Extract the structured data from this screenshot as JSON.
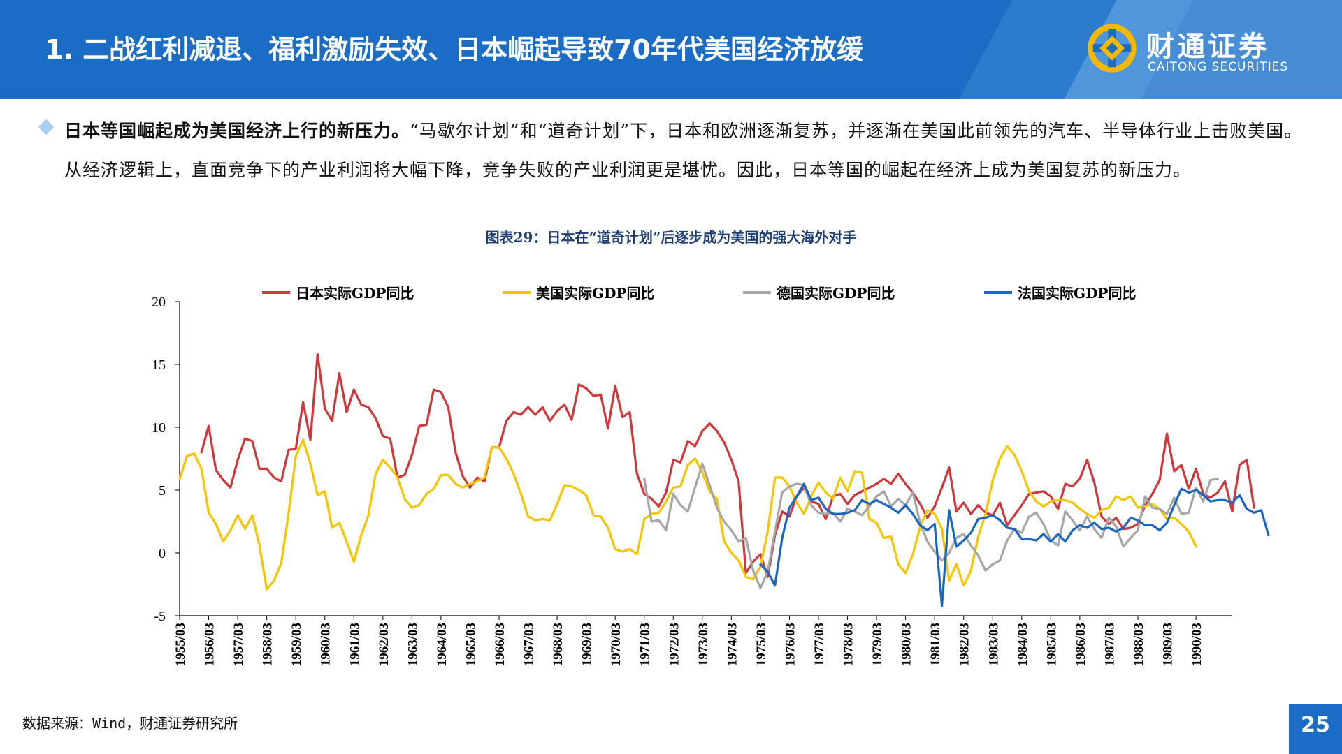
{
  "header": {
    "title": "1. 二战红利减退、福利激励失效、日本崛起导致70年代美国经济放缓",
    "logo_cn": "财通证券",
    "logo_en": "CAITONG SECURITIES",
    "logo_icon": "caitong-logo-icon",
    "color": "#1a6cc4"
  },
  "bullet": {
    "bold": "日本等国崛起成为美国经济上行的新压力。",
    "text": "“马歇尔计划”和“道奇计划”下，日本和欧洲逐渐复苏，并逐渐在美国此前领先的汽车、半导体行业上击败美国。从经济逻辑上，直面竞争下的产业利润将大幅下降，竞争失败的产业利润更是堪忧。因此，日本等国的崛起在经济上成为美国复苏的新压力。"
  },
  "chart_title": "图表29：日本在“道奇计划”后逐步成为美国的强大海外对手",
  "source": "数据来源：Wind，财通证券研究所",
  "page_number": "25",
  "chart_data": {
    "type": "line",
    "ylim": [
      -5,
      20
    ],
    "yticks": [
      20,
      15,
      10,
      5,
      0,
      -5
    ],
    "ytick_labels": [
      "20",
      "15",
      "10",
      "5",
      "0",
      "-5"
    ],
    "xlim": [
      1955.0,
      1991.25
    ],
    "xticks": [
      "1955/03",
      "1956/03",
      "1957/03",
      "1958/03",
      "1959/03",
      "1960/03",
      "1961/03",
      "1962/03",
      "1963/03",
      "1964/03",
      "1965/03",
      "1966/03",
      "1967/03",
      "1968/03",
      "1969/03",
      "1970/03",
      "1971/03",
      "1972/03",
      "1973/03",
      "1974/03",
      "1975/03",
      "1976/03",
      "1977/03",
      "1978/03",
      "1979/03",
      "1980/03",
      "1981/03",
      "1982/03",
      "1983/03",
      "1984/03",
      "1985/03",
      "1986/03",
      "1987/03",
      "1988/03",
      "1989/03",
      "1990/03"
    ],
    "legend_position": "top",
    "grid": false,
    "series": [
      {
        "name": "日本实际GDP同比",
        "color": "#d0373b",
        "start": 1955.75,
        "values": [
          8,
          10.1,
          6.6,
          5.8,
          5.2,
          7.4,
          9.1,
          8.9,
          6.7,
          6.7,
          6,
          5.7,
          8.2,
          8.3,
          12,
          9,
          15.8,
          11.5,
          10.5,
          14.3,
          11.2,
          13,
          11.8,
          11.6,
          10.7,
          9.3,
          9.1,
          6,
          6.2,
          7.8,
          10.1,
          10.2,
          13,
          12.8,
          11.6,
          8,
          6.1,
          5.2,
          6,
          5.7,
          8.4,
          8.4,
          10.5,
          11.2,
          11,
          11.6,
          11,
          11.6,
          10.5,
          11.3,
          11.8,
          10.6,
          13.4,
          13.1,
          12.5,
          12.6,
          9.9,
          13.3,
          10.8,
          11.2,
          6.3,
          4.7,
          4.3,
          3.7,
          4.8,
          7.4,
          7.2,
          8.9,
          8.5,
          9.7,
          10.3,
          9.7,
          8.8,
          7.4,
          5.7,
          -1.6,
          -0.7,
          -0.1,
          -1.9,
          1.4,
          3.3,
          2.9,
          4.5,
          5.2,
          4.1,
          3.9,
          2.7,
          4.5,
          4.7,
          3.9,
          4.6,
          4.9,
          5.2,
          5.5,
          5.9,
          5.5,
          6.3,
          5.5,
          4.8,
          3.9,
          2.8,
          3.7,
          5.2,
          6.8,
          3.3,
          4,
          3.1,
          3.8,
          3.2,
          3,
          4,
          2.2,
          3,
          3.8,
          4.7,
          4.8,
          4.9,
          4.5,
          3.5,
          5.5,
          5.3,
          5.9,
          7.4,
          5.6,
          2.9,
          2.3,
          2.8,
          1.9,
          2,
          2.3,
          3.8,
          4.7,
          5.8,
          9.5,
          6.5,
          7,
          5.1,
          6.7,
          4.7,
          4.4,
          4.8,
          5.7,
          3.3,
          7,
          7.4,
          3.6
        ]
      },
      {
        "name": "美国实际GDP同比",
        "color": "#f5c500",
        "start": 1955.0,
        "values": [
          5.9,
          7.7,
          7.9,
          6.7,
          3.2,
          2.3,
          0.9,
          1.8,
          3,
          1.9,
          3,
          0.6,
          -2.9,
          -2.2,
          -0.8,
          3.1,
          7.7,
          9,
          7.1,
          4.6,
          4.9,
          2,
          2.4,
          0.9,
          -0.7,
          1.4,
          3,
          6.3,
          7.4,
          6.8,
          6,
          4.3,
          3.6,
          3.8,
          4.7,
          5.1,
          6.2,
          6.2,
          5.5,
          5.2,
          5.5,
          5.7,
          6,
          8.4,
          8.4,
          7.5,
          6.3,
          4.7,
          2.9,
          2.6,
          2.7,
          2.6,
          3.9,
          5.4,
          5.3,
          5,
          4.6,
          3,
          2.9,
          2,
          0.3,
          0.1,
          0.3,
          -0.1,
          2.7,
          3.1,
          3.2,
          4.1,
          5.2,
          5.3,
          7,
          7.5,
          6.4,
          4.9,
          4.3,
          0.9,
          0,
          -0.6,
          -1.9,
          -2.1,
          -1.1,
          1.7,
          6,
          6,
          5.3,
          4,
          3.1,
          4.5,
          5.6,
          4.8,
          4.3,
          6,
          4.9,
          6.5,
          6.4,
          2.7,
          2.4,
          1.2,
          1.3,
          -0.9,
          -1.6,
          -0.1,
          2.1,
          3.4,
          3.1,
          1.9,
          -2.2,
          -0.9,
          -2.6,
          -1.4,
          1.3,
          3.1,
          5.8,
          7.5,
          8.5,
          7.8,
          6.5,
          4.9,
          4.1,
          3.7,
          4.1,
          4.2,
          4.2,
          4,
          3.5,
          3.1,
          2.8,
          3.4,
          3.6,
          4.5,
          4.2,
          4.5,
          3.6,
          3.7,
          3.9,
          3.5,
          2.7,
          2.8,
          2.3,
          1.7,
          0.5
        ]
      },
      {
        "name": "德国实际GDP同比",
        "color": "#a6a6a6",
        "start": 1971.0,
        "values": [
          5.9,
          2.5,
          2.6,
          1.8,
          4.7,
          3.8,
          3.3,
          5.2,
          7.1,
          5.4,
          3.6,
          2.5,
          1.8,
          0.9,
          1.2,
          -1.4,
          -2.8,
          -1.5,
          1.7,
          4.8,
          5.3,
          5.5,
          5.4,
          3.8,
          3.2,
          3.1,
          3.2,
          2.5,
          3.5,
          3.3,
          3,
          3.7,
          4.5,
          4.9,
          3.7,
          4.3,
          3.8,
          4.8,
          2.4,
          0.9,
          0.1,
          -0.6,
          0,
          1.2,
          1.5,
          0.6,
          -0.2,
          -1.4,
          -0.9,
          -0.6,
          1,
          1.9,
          1.6,
          2.9,
          3.2,
          2.3,
          1,
          0.6,
          3.3,
          2.6,
          1.8,
          2.9,
          1.9,
          1.2,
          2.8,
          2.1,
          0.5,
          1.2,
          1.8,
          4.5,
          3.6,
          3.5,
          3.1,
          4.4,
          3.1,
          3.2,
          5.2,
          4.1,
          5.8,
          5.9
        ]
      },
      {
        "name": "法国实际GDP同比",
        "color": "#1a66c0",
        "start": 1975.0,
        "values": [
          -0.9,
          -1.5,
          -2.6,
          1.2,
          3.6,
          4.5,
          5.5,
          4.2,
          4.4,
          3.5,
          3.1,
          3.1,
          3.2,
          3.4,
          4.2,
          3.9,
          4.2,
          3.9,
          3.6,
          3.2,
          3.8,
          3.1,
          2.2,
          1.8,
          2.3,
          -4.2,
          3.4,
          0.5,
          1,
          1.6,
          2.7,
          2.8,
          3,
          2.6,
          2,
          1.9,
          1.1,
          1.1,
          1,
          1.5,
          0.9,
          1.5,
          0.9,
          1.8,
          2.2,
          2,
          2.4,
          1.9,
          2,
          1.7,
          2,
          2.8,
          2.6,
          2.2,
          2.2,
          1.8,
          2.4,
          3.8,
          5.1,
          4.8,
          5,
          4.6,
          4.1,
          4.2,
          4.2,
          4,
          4.6,
          3.5,
          3.2,
          3.4,
          1.4
        ]
      }
    ]
  }
}
